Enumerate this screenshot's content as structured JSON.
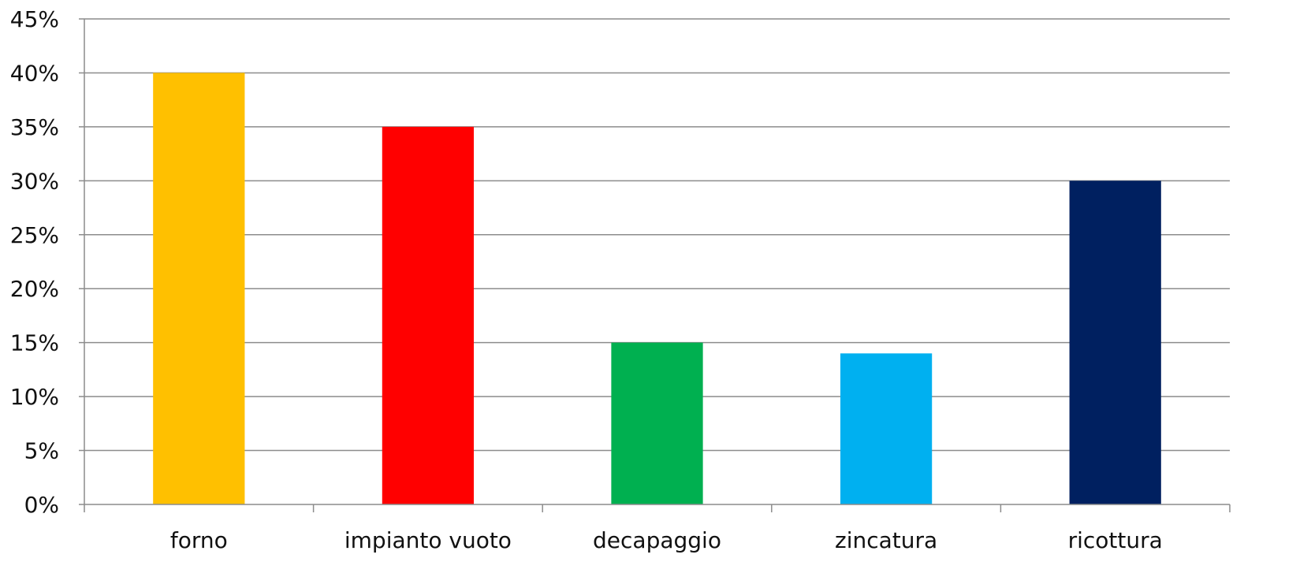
{
  "chart_data": {
    "type": "bar",
    "categories": [
      "forno",
      "impianto vuoto",
      "decapaggio",
      "zincatura",
      "ricottura"
    ],
    "values": [
      40,
      35,
      15,
      14,
      30
    ],
    "colors": [
      "#FFC000",
      "#FF0000",
      "#00B050",
      "#00B0F0",
      "#002060"
    ],
    "ylim": [
      0,
      45
    ],
    "yticks": [
      "0%",
      "5%",
      "10%",
      "15%",
      "20%",
      "25%",
      "30%",
      "35%",
      "40%",
      "45%"
    ],
    "title": "",
    "xlabel": "",
    "ylabel": "",
    "grid": true,
    "legend": "none"
  }
}
